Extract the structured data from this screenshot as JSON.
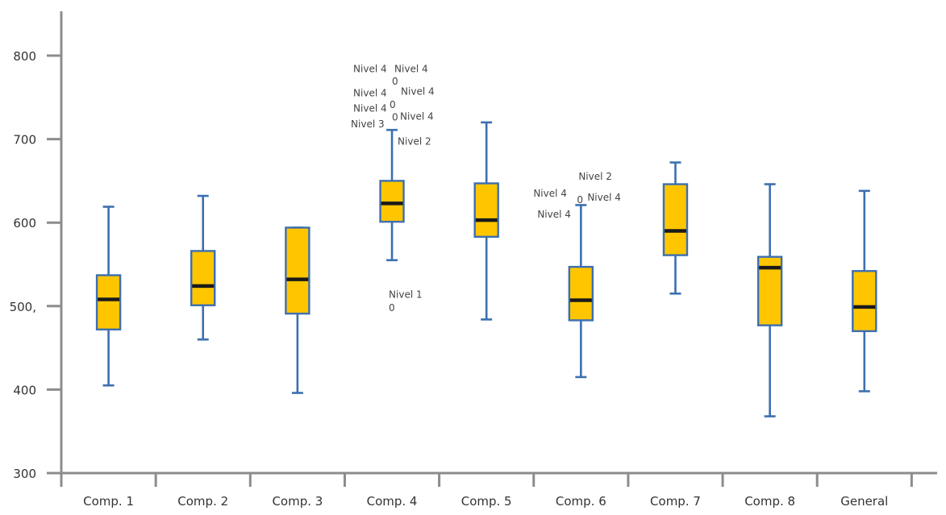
{
  "chart_data": {
    "type": "box",
    "title": "",
    "xlabel": "",
    "ylabel": "",
    "ylim": [
      300,
      850
    ],
    "yticks": [
      {
        "value": 300,
        "label": "300"
      },
      {
        "value": 400,
        "label": "400"
      },
      {
        "value": 500,
        "label": "500,"
      },
      {
        "value": 600,
        "label": "600"
      },
      {
        "value": 700,
        "label": "700"
      },
      {
        "value": 800,
        "label": "800"
      }
    ],
    "grid": false,
    "colors": {
      "box_fill": "#ffc600",
      "box_stroke": "#3c6fb0",
      "median": "#1a1a1a",
      "axis": "#8c8c8c"
    },
    "categories": [
      "Comp. 1",
      "Comp. 2",
      "Comp. 3",
      "Comp. 4",
      "Comp. 5",
      "Comp. 6",
      "Comp. 7",
      "Comp. 8",
      "General"
    ],
    "boxes": [
      {
        "min": 405,
        "q1": 472,
        "median": 508,
        "q3": 537,
        "max": 619
      },
      {
        "min": 460,
        "q1": 501,
        "median": 524,
        "q3": 566,
        "max": 632
      },
      {
        "min": 396,
        "q1": 491,
        "median": 532,
        "q3": 594,
        "max": 594
      },
      {
        "min": 555,
        "q1": 601,
        "median": 623,
        "q3": 650,
        "max": 711
      },
      {
        "min": 484,
        "q1": 583,
        "median": 603,
        "q3": 647,
        "max": 720
      },
      {
        "min": 415,
        "q1": 483,
        "median": 507,
        "q3": 547,
        "max": 621
      },
      {
        "min": 515,
        "q1": 561,
        "median": 590,
        "q3": 646,
        "max": 672
      },
      {
        "min": 368,
        "q1": 477,
        "median": 546,
        "q3": 559,
        "max": 646
      },
      {
        "min": 398,
        "q1": 470,
        "median": 499,
        "q3": 542,
        "max": 638
      }
    ],
    "annotations": [
      {
        "text": "Nivel 4",
        "category": 3,
        "offset": -48,
        "y": 784
      },
      {
        "text": "Nivel 4",
        "category": 3,
        "offset": 3,
        "y": 784
      },
      {
        "text": "0",
        "category": 3,
        "offset": 0,
        "y": 769
      },
      {
        "text": "Nivel 4",
        "category": 3,
        "offset": -48,
        "y": 755
      },
      {
        "text": "Nivel 4",
        "category": 3,
        "offset": 11,
        "y": 757
      },
      {
        "text": "0",
        "category": 3,
        "offset": -3,
        "y": 741
      },
      {
        "text": "Nivel 4",
        "category": 3,
        "offset": -48,
        "y": 737
      },
      {
        "text": "0",
        "category": 3,
        "offset": 0,
        "y": 726
      },
      {
        "text": "Nivel 4",
        "category": 3,
        "offset": 10,
        "y": 727
      },
      {
        "text": "Nivel 3",
        "category": 3,
        "offset": -51,
        "y": 718
      },
      {
        "text": "Nivel 2",
        "category": 3,
        "offset": 7,
        "y": 697
      },
      {
        "text": "Nivel 1",
        "category": 3,
        "offset": -4,
        "y": 514
      },
      {
        "text": "0",
        "category": 3,
        "offset": -4,
        "y": 498
      },
      {
        "text": "Nivel 2",
        "category": 5,
        "offset": -3,
        "y": 655
      },
      {
        "text": "Nivel 4",
        "category": 5,
        "offset": -59,
        "y": 635
      },
      {
        "text": "0",
        "category": 5,
        "offset": -5,
        "y": 627
      },
      {
        "text": "Nivel 4",
        "category": 5,
        "offset": 8,
        "y": 630
      },
      {
        "text": "Nivel 4",
        "category": 5,
        "offset": -54,
        "y": 610
      }
    ]
  }
}
